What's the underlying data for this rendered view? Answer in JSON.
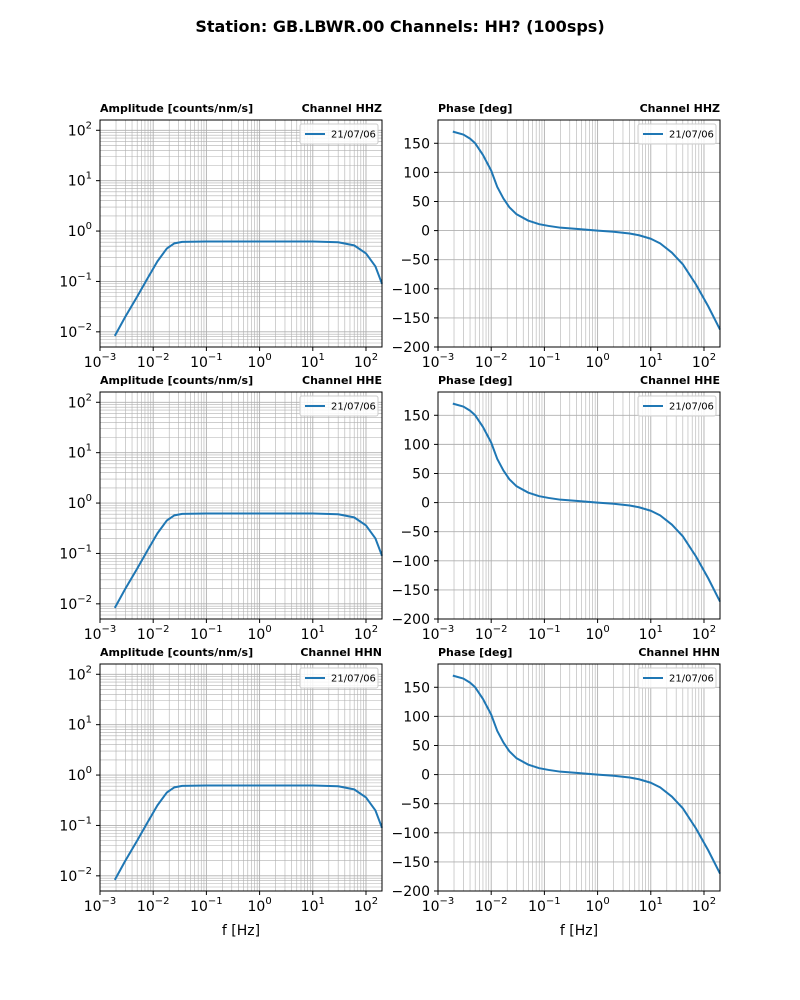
{
  "figure": {
    "title": "Station: GB.LBWR.00 Channels: HH? (100sps)"
  },
  "colors": {
    "series": "#1f77b4",
    "grid": "#b0b0b0"
  },
  "chart_data": [
    {
      "type": "line",
      "panel": "amplitude",
      "channel": "HHZ",
      "title_left": "Amplitude [counts/nm/s]",
      "title_right": "Channel HHZ",
      "xlabel": "",
      "xscale": "log",
      "yscale": "log",
      "xlim": [
        0.001,
        200
      ],
      "ylim": [
        0.005,
        160
      ],
      "x_ticks": [
        {
          "base": "10",
          "exp": "−3",
          "value": 0.001
        },
        {
          "base": "10",
          "exp": "−2",
          "value": 0.01
        },
        {
          "base": "10",
          "exp": "−1",
          "value": 0.1
        },
        {
          "base": "10",
          "exp": "0",
          "value": 1
        },
        {
          "base": "10",
          "exp": "1",
          "value": 10
        },
        {
          "base": "10",
          "exp": "2",
          "value": 100
        }
      ],
      "y_ticks": [
        {
          "base": "10",
          "exp": "−2",
          "value": 0.01
        },
        {
          "base": "10",
          "exp": "−1",
          "value": 0.1
        },
        {
          "base": "10",
          "exp": "0",
          "value": 1
        },
        {
          "base": "10",
          "exp": "1",
          "value": 10
        },
        {
          "base": "10",
          "exp": "2",
          "value": 100
        }
      ],
      "grid": true,
      "legend_position": "top-right",
      "series": [
        {
          "name": "21/07/06",
          "x": [
            0.0019,
            0.003,
            0.005,
            0.008,
            0.012,
            0.018,
            0.025,
            0.035,
            0.05,
            0.1,
            1,
            10,
            30,
            60,
            100,
            150,
            200
          ],
          "y": [
            0.0083,
            0.02,
            0.05,
            0.12,
            0.25,
            0.45,
            0.57,
            0.61,
            0.615,
            0.62,
            0.62,
            0.62,
            0.6,
            0.52,
            0.36,
            0.2,
            0.09
          ]
        }
      ]
    },
    {
      "type": "line",
      "panel": "phase",
      "channel": "HHZ",
      "title_left": "Phase [deg]",
      "title_right": "Channel HHZ",
      "xlabel": "",
      "xscale": "log",
      "yscale": "linear",
      "xlim": [
        0.001,
        200
      ],
      "ylim": [
        -200,
        190
      ],
      "x_ticks": [
        {
          "base": "10",
          "exp": "−3",
          "value": 0.001
        },
        {
          "base": "10",
          "exp": "−2",
          "value": 0.01
        },
        {
          "base": "10",
          "exp": "−1",
          "value": 0.1
        },
        {
          "base": "10",
          "exp": "0",
          "value": 1
        },
        {
          "base": "10",
          "exp": "1",
          "value": 10
        },
        {
          "base": "10",
          "exp": "2",
          "value": 100
        }
      ],
      "y_ticks": [
        {
          "label": "150",
          "value": 150
        },
        {
          "label": "100",
          "value": 100
        },
        {
          "label": "50",
          "value": 50
        },
        {
          "label": "0",
          "value": 0
        },
        {
          "label": "−50",
          "value": -50
        },
        {
          "label": "−100",
          "value": -100
        },
        {
          "label": "−150",
          "value": -150
        },
        {
          "label": "−200",
          "value": -200
        }
      ],
      "grid": true,
      "legend_position": "top-right",
      "series": [
        {
          "name": "21/07/06",
          "x": [
            0.0019,
            0.003,
            0.004,
            0.005,
            0.007,
            0.01,
            0.013,
            0.017,
            0.022,
            0.03,
            0.05,
            0.08,
            0.12,
            0.2,
            0.4,
            1,
            2,
            4,
            6,
            10,
            15,
            25,
            40,
            70,
            120,
            200
          ],
          "y": [
            170,
            165,
            158,
            150,
            130,
            103,
            75,
            55,
            40,
            28,
            17,
            11,
            8,
            5,
            3,
            0,
            -2,
            -5,
            -8,
            -14,
            -22,
            -38,
            -58,
            -92,
            -130,
            -170
          ]
        }
      ]
    },
    {
      "type": "line",
      "panel": "amplitude",
      "channel": "HHE",
      "title_left": "Amplitude [counts/nm/s]",
      "title_right": "Channel HHE",
      "xlabel": "",
      "xscale": "log",
      "yscale": "log",
      "xlim": [
        0.001,
        200
      ],
      "ylim": [
        0.005,
        160
      ],
      "x_ticks": [
        {
          "base": "10",
          "exp": "−3",
          "value": 0.001
        },
        {
          "base": "10",
          "exp": "−2",
          "value": 0.01
        },
        {
          "base": "10",
          "exp": "−1",
          "value": 0.1
        },
        {
          "base": "10",
          "exp": "0",
          "value": 1
        },
        {
          "base": "10",
          "exp": "1",
          "value": 10
        },
        {
          "base": "10",
          "exp": "2",
          "value": 100
        }
      ],
      "y_ticks": [
        {
          "base": "10",
          "exp": "−2",
          "value": 0.01
        },
        {
          "base": "10",
          "exp": "−1",
          "value": 0.1
        },
        {
          "base": "10",
          "exp": "0",
          "value": 1
        },
        {
          "base": "10",
          "exp": "1",
          "value": 10
        },
        {
          "base": "10",
          "exp": "2",
          "value": 100
        }
      ],
      "grid": true,
      "legend_position": "top-right",
      "series": [
        {
          "name": "21/07/06",
          "x": [
            0.0019,
            0.003,
            0.005,
            0.008,
            0.012,
            0.018,
            0.025,
            0.035,
            0.05,
            0.1,
            1,
            10,
            30,
            60,
            100,
            150,
            200
          ],
          "y": [
            0.0083,
            0.02,
            0.05,
            0.12,
            0.25,
            0.45,
            0.57,
            0.61,
            0.615,
            0.62,
            0.62,
            0.62,
            0.6,
            0.52,
            0.36,
            0.2,
            0.09
          ]
        }
      ]
    },
    {
      "type": "line",
      "panel": "phase",
      "channel": "HHE",
      "title_left": "Phase [deg]",
      "title_right": "Channel HHE",
      "xlabel": "",
      "xscale": "log",
      "yscale": "linear",
      "xlim": [
        0.001,
        200
      ],
      "ylim": [
        -200,
        190
      ],
      "x_ticks": [
        {
          "base": "10",
          "exp": "−3",
          "value": 0.001
        },
        {
          "base": "10",
          "exp": "−2",
          "value": 0.01
        },
        {
          "base": "10",
          "exp": "−1",
          "value": 0.1
        },
        {
          "base": "10",
          "exp": "0",
          "value": 1
        },
        {
          "base": "10",
          "exp": "1",
          "value": 10
        },
        {
          "base": "10",
          "exp": "2",
          "value": 100
        }
      ],
      "y_ticks": [
        {
          "label": "150",
          "value": 150
        },
        {
          "label": "100",
          "value": 100
        },
        {
          "label": "50",
          "value": 50
        },
        {
          "label": "0",
          "value": 0
        },
        {
          "label": "−50",
          "value": -50
        },
        {
          "label": "−100",
          "value": -100
        },
        {
          "label": "−150",
          "value": -150
        },
        {
          "label": "−200",
          "value": -200
        }
      ],
      "grid": true,
      "legend_position": "top-right",
      "series": [
        {
          "name": "21/07/06",
          "x": [
            0.0019,
            0.003,
            0.004,
            0.005,
            0.007,
            0.01,
            0.013,
            0.017,
            0.022,
            0.03,
            0.05,
            0.08,
            0.12,
            0.2,
            0.4,
            1,
            2,
            4,
            6,
            10,
            15,
            25,
            40,
            70,
            120,
            200
          ],
          "y": [
            170,
            165,
            158,
            150,
            130,
            103,
            75,
            55,
            40,
            28,
            17,
            11,
            8,
            5,
            3,
            0,
            -2,
            -5,
            -8,
            -14,
            -22,
            -38,
            -58,
            -92,
            -130,
            -170
          ]
        }
      ]
    },
    {
      "type": "line",
      "panel": "amplitude",
      "channel": "HHN",
      "title_left": "Amplitude [counts/nm/s]",
      "title_right": "Channel HHN",
      "xlabel": "f [Hz]",
      "xscale": "log",
      "yscale": "log",
      "xlim": [
        0.001,
        200
      ],
      "ylim": [
        0.005,
        160
      ],
      "x_ticks": [
        {
          "base": "10",
          "exp": "−3",
          "value": 0.001
        },
        {
          "base": "10",
          "exp": "−2",
          "value": 0.01
        },
        {
          "base": "10",
          "exp": "−1",
          "value": 0.1
        },
        {
          "base": "10",
          "exp": "0",
          "value": 1
        },
        {
          "base": "10",
          "exp": "1",
          "value": 10
        },
        {
          "base": "10",
          "exp": "2",
          "value": 100
        }
      ],
      "y_ticks": [
        {
          "base": "10",
          "exp": "−2",
          "value": 0.01
        },
        {
          "base": "10",
          "exp": "−1",
          "value": 0.1
        },
        {
          "base": "10",
          "exp": "0",
          "value": 1
        },
        {
          "base": "10",
          "exp": "1",
          "value": 10
        },
        {
          "base": "10",
          "exp": "2",
          "value": 100
        }
      ],
      "grid": true,
      "legend_position": "top-right",
      "series": [
        {
          "name": "21/07/06",
          "x": [
            0.0019,
            0.003,
            0.005,
            0.008,
            0.012,
            0.018,
            0.025,
            0.035,
            0.05,
            0.1,
            1,
            10,
            30,
            60,
            100,
            150,
            200
          ],
          "y": [
            0.0083,
            0.02,
            0.05,
            0.12,
            0.25,
            0.45,
            0.57,
            0.61,
            0.615,
            0.62,
            0.62,
            0.62,
            0.6,
            0.52,
            0.36,
            0.2,
            0.09
          ]
        }
      ]
    },
    {
      "type": "line",
      "panel": "phase",
      "channel": "HHN",
      "title_left": "Phase [deg]",
      "title_right": "Channel HHN",
      "xlabel": "f [Hz]",
      "xscale": "log",
      "yscale": "linear",
      "xlim": [
        0.001,
        200
      ],
      "ylim": [
        -200,
        190
      ],
      "x_ticks": [
        {
          "base": "10",
          "exp": "−3",
          "value": 0.001
        },
        {
          "base": "10",
          "exp": "−2",
          "value": 0.01
        },
        {
          "base": "10",
          "exp": "−1",
          "value": 0.1
        },
        {
          "base": "10",
          "exp": "0",
          "value": 1
        },
        {
          "base": "10",
          "exp": "1",
          "value": 10
        },
        {
          "base": "10",
          "exp": "2",
          "value": 100
        }
      ],
      "y_ticks": [
        {
          "label": "150",
          "value": 150
        },
        {
          "label": "100",
          "value": 100
        },
        {
          "label": "50",
          "value": 50
        },
        {
          "label": "0",
          "value": 0
        },
        {
          "label": "−50",
          "value": -50
        },
        {
          "label": "−100",
          "value": -100
        },
        {
          "label": "−150",
          "value": -150
        },
        {
          "label": "−200",
          "value": -200
        }
      ],
      "grid": true,
      "legend_position": "top-right",
      "series": [
        {
          "name": "21/07/06",
          "x": [
            0.0019,
            0.003,
            0.004,
            0.005,
            0.007,
            0.01,
            0.013,
            0.017,
            0.022,
            0.03,
            0.05,
            0.08,
            0.12,
            0.2,
            0.4,
            1,
            2,
            4,
            6,
            10,
            15,
            25,
            40,
            70,
            120,
            200
          ],
          "y": [
            170,
            165,
            158,
            150,
            130,
            103,
            75,
            55,
            40,
            28,
            17,
            11,
            8,
            5,
            3,
            0,
            -2,
            -5,
            -8,
            -14,
            -22,
            -38,
            -58,
            -92,
            -130,
            -170
          ]
        }
      ]
    }
  ]
}
